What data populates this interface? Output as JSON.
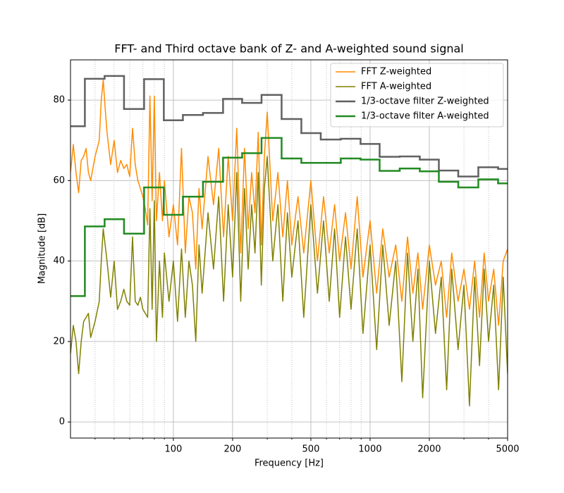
{
  "chart_data": {
    "type": "line",
    "title": "FFT- and Third octave bank of Z- and A-weighted sound signal",
    "xlabel": "Frequency [Hz]",
    "ylabel": "Magnitude [dB]",
    "xscale": "log",
    "xlim": [
      30,
      5000
    ],
    "xticks": [
      100,
      200,
      500,
      1000,
      2000,
      5000
    ],
    "xminorticks": [
      40,
      50,
      60,
      70,
      80,
      90,
      300,
      400,
      600,
      700,
      800,
      900,
      3000,
      4000
    ],
    "ylim": [
      -4,
      90
    ],
    "yticks": [
      0,
      20,
      40,
      60,
      80
    ],
    "grid": true,
    "legend": "upper right",
    "series": [
      {
        "name": "FFT Z-weighted",
        "color": "#ff8c00",
        "linewidth": 1.5,
        "drawstyle": "default",
        "x": [
          30,
          31,
          32,
          33,
          34,
          35,
          36,
          37,
          38,
          40,
          42,
          43,
          44,
          45,
          46,
          48,
          50,
          52,
          54,
          56,
          58,
          60,
          62,
          64,
          66,
          68,
          70,
          72,
          74,
          76,
          78,
          80,
          82,
          85,
          88,
          90,
          95,
          100,
          105,
          110,
          115,
          120,
          125,
          130,
          135,
          140,
          150,
          160,
          170,
          180,
          190,
          200,
          210,
          220,
          230,
          240,
          250,
          260,
          270,
          280,
          290,
          300,
          320,
          340,
          360,
          380,
          400,
          430,
          460,
          500,
          540,
          580,
          620,
          660,
          700,
          750,
          800,
          860,
          920,
          1000,
          1080,
          1160,
          1250,
          1350,
          1450,
          1550,
          1650,
          1750,
          1850,
          2000,
          2150,
          2300,
          2450,
          2600,
          2800,
          3000,
          3200,
          3400,
          3600,
          3800,
          4000,
          4250,
          4500,
          4750,
          5000
        ],
        "values": [
          62,
          69,
          62,
          57,
          65,
          66,
          68,
          62,
          60,
          66,
          70,
          80,
          85,
          78,
          72,
          64,
          70,
          62,
          65,
          63,
          64,
          61,
          73,
          64,
          60,
          58,
          56,
          53,
          49,
          81,
          55,
          81,
          50,
          62,
          50,
          60,
          46,
          54,
          44,
          68,
          42,
          56,
          52,
          38,
          58,
          48,
          66,
          54,
          68,
          46,
          66,
          50,
          73,
          42,
          68,
          48,
          62,
          52,
          72,
          44,
          66,
          77,
          50,
          62,
          46,
          60,
          44,
          56,
          42,
          60,
          40,
          56,
          42,
          54,
          40,
          52,
          38,
          56,
          36,
          50,
          32,
          48,
          36,
          44,
          30,
          46,
          32,
          42,
          28,
          44,
          34,
          40,
          26,
          42,
          30,
          38,
          28,
          40,
          26,
          42,
          30,
          38,
          24,
          40,
          43
        ]
      },
      {
        "name": "FFT A-weighted",
        "color": "#808000",
        "linewidth": 1.5,
        "drawstyle": "default",
        "x": [
          30,
          31,
          32,
          33,
          34,
          35,
          36,
          37,
          38,
          40,
          42,
          43,
          44,
          45,
          46,
          48,
          50,
          52,
          54,
          56,
          58,
          60,
          62,
          64,
          66,
          68,
          70,
          72,
          74,
          76,
          78,
          80,
          82,
          85,
          88,
          90,
          95,
          100,
          105,
          110,
          115,
          120,
          125,
          130,
          135,
          140,
          150,
          160,
          170,
          180,
          190,
          200,
          210,
          220,
          230,
          240,
          250,
          260,
          270,
          280,
          290,
          300,
          320,
          340,
          360,
          380,
          400,
          430,
          460,
          500,
          540,
          580,
          620,
          660,
          700,
          750,
          800,
          860,
          920,
          1000,
          1080,
          1160,
          1250,
          1350,
          1450,
          1550,
          1650,
          1750,
          1850,
          2000,
          2150,
          2300,
          2450,
          2600,
          2800,
          3000,
          3200,
          3400,
          3600,
          3800,
          4000,
          4250,
          4500,
          4750,
          5000
        ],
        "values": [
          17,
          24,
          20,
          12,
          20,
          25,
          26,
          27,
          21,
          25,
          30,
          40,
          48,
          44,
          40,
          31,
          40,
          28,
          30,
          33,
          30,
          29,
          46,
          30,
          29,
          31,
          28,
          27,
          26,
          53,
          28,
          55,
          20,
          40,
          26,
          42,
          30,
          40,
          25,
          43,
          26,
          40,
          34,
          20,
          44,
          32,
          52,
          38,
          56,
          30,
          54,
          36,
          62,
          30,
          58,
          38,
          54,
          42,
          62,
          34,
          58,
          66,
          40,
          54,
          30,
          52,
          36,
          50,
          26,
          54,
          32,
          50,
          30,
          48,
          26,
          46,
          28,
          48,
          22,
          44,
          18,
          44,
          24,
          40,
          10,
          42,
          20,
          38,
          6,
          40,
          22,
          36,
          8,
          38,
          18,
          34,
          4,
          36,
          14,
          38,
          20,
          34,
          8,
          36,
          12
        ]
      },
      {
        "name": "1/3-octave filter Z-weighted",
        "color": "#616161",
        "linewidth": 2.5,
        "drawstyle": "steps-mid",
        "x": [
          31.5,
          40,
          50,
          63,
          80,
          100,
          125,
          160,
          200,
          250,
          315,
          400,
          500,
          630,
          800,
          1000,
          1250,
          1600,
          2000,
          2500,
          3150,
          4000,
          5000
        ],
        "values": [
          73.5,
          85.3,
          86,
          77.8,
          85.2,
          75,
          76.3,
          76.8,
          80.3,
          79.3,
          81.3,
          75.3,
          71.8,
          70.2,
          70.4,
          69.1,
          65.9,
          66,
          65.2,
          62.5,
          61,
          63.3,
          62.9
        ]
      },
      {
        "name": "1/3-octave filter A-weighted",
        "color": "#228b22",
        "linewidth": 2.5,
        "drawstyle": "steps-mid",
        "x": [
          31.5,
          40,
          50,
          63,
          80,
          100,
          125,
          160,
          200,
          250,
          315,
          400,
          500,
          630,
          800,
          1000,
          1250,
          1600,
          2000,
          2500,
          3150,
          4000,
          5000
        ],
        "values": [
          31.3,
          48.6,
          50.4,
          46.8,
          58.3,
          51.5,
          56,
          59.7,
          65.7,
          66.8,
          70.6,
          65.5,
          64.4,
          64.4,
          65.5,
          65.2,
          62.4,
          63,
          62.3,
          59.7,
          58.3,
          60.3,
          59.3
        ]
      }
    ]
  }
}
